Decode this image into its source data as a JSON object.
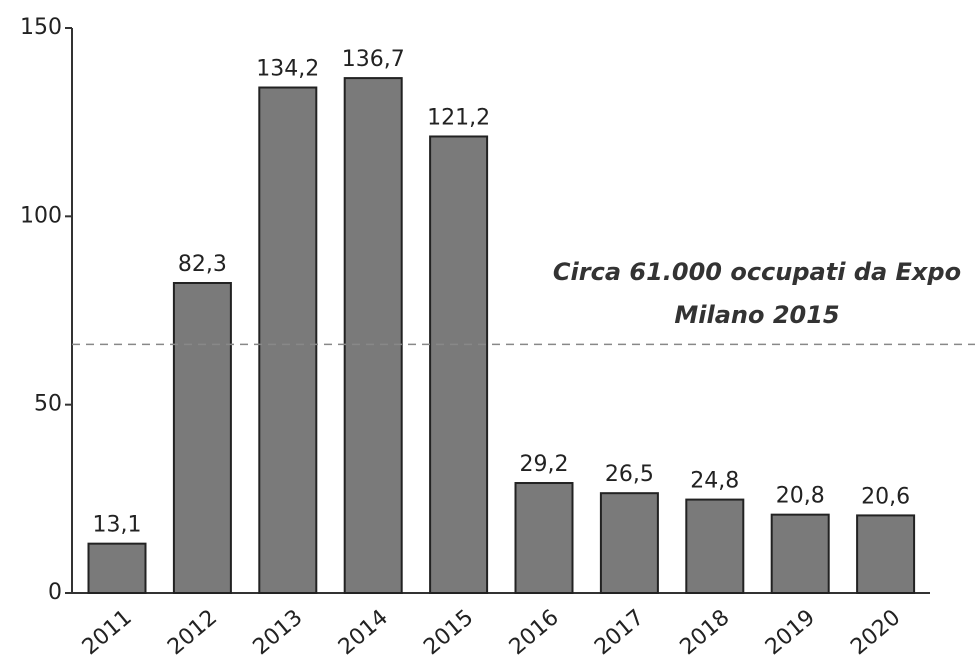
{
  "chart_data": {
    "type": "bar",
    "categories": [
      "2011",
      "2012",
      "2013",
      "2014",
      "2015",
      "2016",
      "2017",
      "2018",
      "2019",
      "2020"
    ],
    "values": [
      13.1,
      82.3,
      134.2,
      136.7,
      121.2,
      29.2,
      26.5,
      24.8,
      20.8,
      20.6
    ],
    "value_labels": [
      "13,1",
      "82,3",
      "134,2",
      "136,7",
      "121,2",
      "29,2",
      "26,5",
      "24,8",
      "20,8",
      "20,6"
    ],
    "color": "#7a7a7a",
    "ylim": [
      0,
      150
    ],
    "yticks": [
      0,
      50,
      100,
      150
    ],
    "reference_line": 66,
    "annotation": [
      "Circa 61.000 occupati da Expo",
      "Milano 2015"
    ]
  }
}
